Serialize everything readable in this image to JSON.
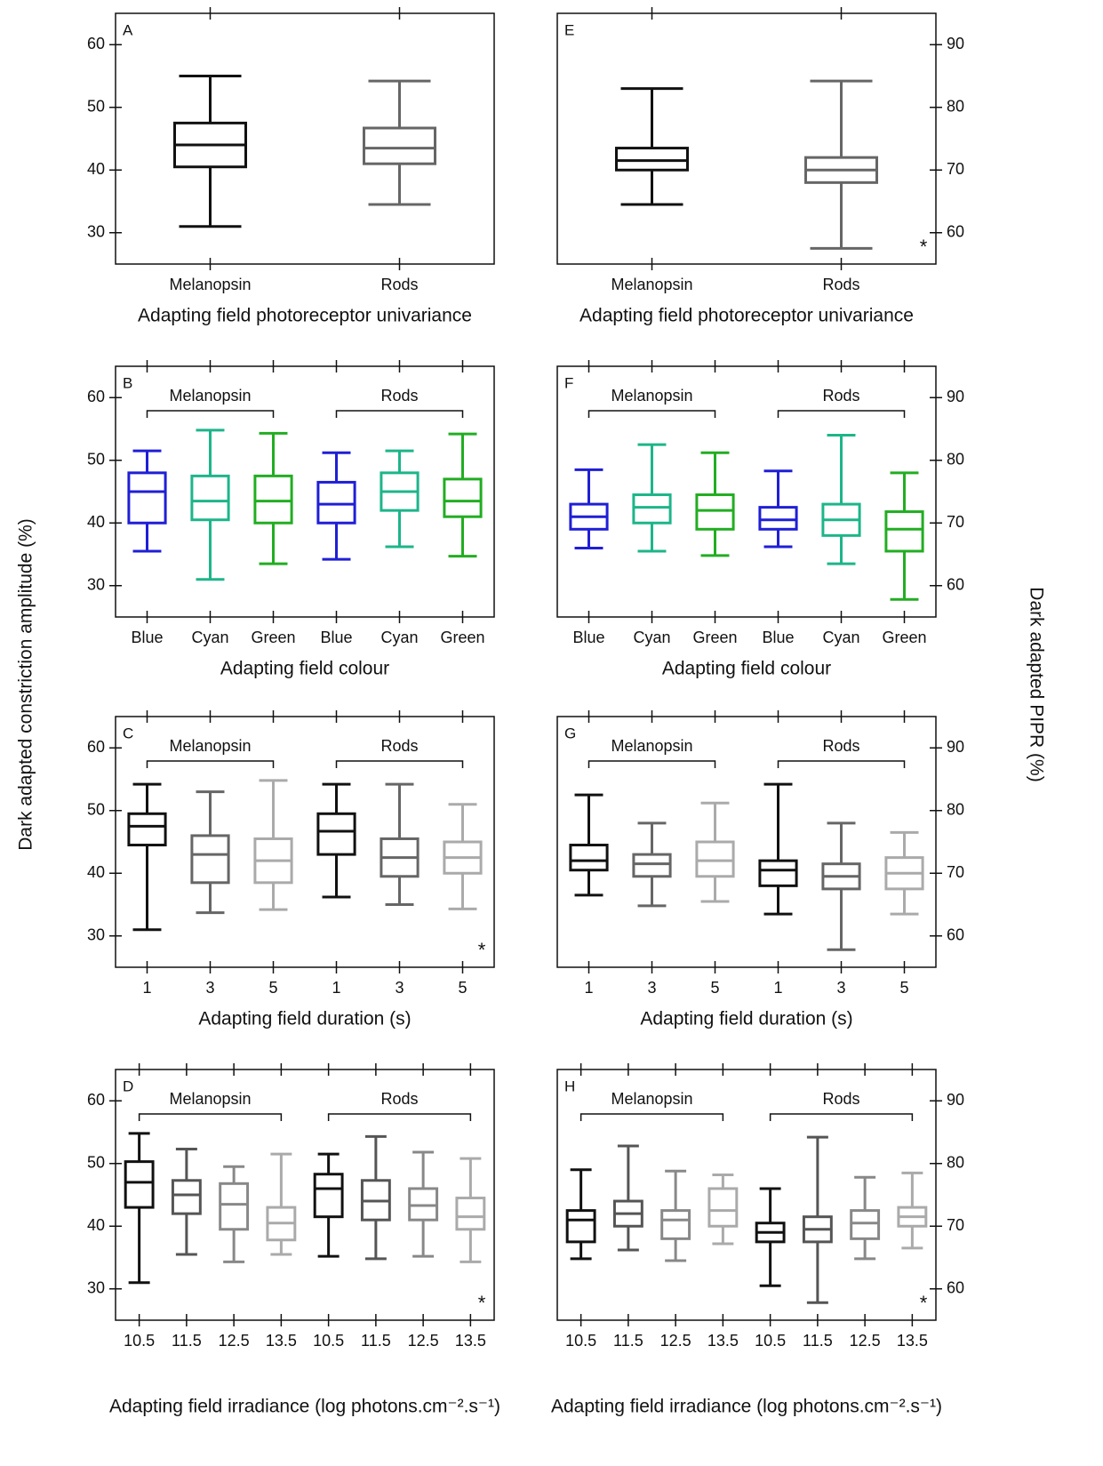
{
  "figure": {
    "ylabel_left": "Dark adapted constriction amplitude (%)",
    "ylabel_right": "Dark adapted PIPR (%)"
  },
  "chart_data": [
    {
      "type": "box",
      "label": "A",
      "xlabel": "Adapting field photoreceptor univariance",
      "categories": [
        "Melanopsin",
        "Rods"
      ],
      "colors": [
        "#111111",
        "#666666"
      ],
      "min": [
        31,
        34.5
      ],
      "q1": [
        40.5,
        41
      ],
      "median": [
        44,
        43.5
      ],
      "q3": [
        47.5,
        46.7
      ],
      "max": [
        55,
        54.2
      ],
      "ylim": [
        25,
        65
      ],
      "yticks": [
        30,
        40,
        50,
        60
      ],
      "yaxis_side": "left"
    },
    {
      "type": "box",
      "label": "B",
      "xlabel": "Adapting field colour",
      "categories": [
        "Blue",
        "Cyan",
        "Green",
        "Blue",
        "Cyan",
        "Green"
      ],
      "groups": [
        "Melanopsin",
        "Rods"
      ],
      "colors": [
        "#1f1fd6",
        "#1db58a",
        "#22ad22",
        "#1f1fd6",
        "#1db58a",
        "#22ad22"
      ],
      "min": [
        35.5,
        31,
        33.5,
        34.2,
        36.2,
        34.7
      ],
      "q1": [
        40,
        40.5,
        40,
        40,
        42,
        41
      ],
      "median": [
        45,
        43.5,
        43.5,
        43,
        45,
        43.5
      ],
      "q3": [
        48,
        47.5,
        47.5,
        46.5,
        48,
        47
      ],
      "max": [
        51.5,
        54.8,
        54.3,
        51.2,
        51.5,
        54.2
      ],
      "ylim": [
        25,
        65
      ],
      "yticks": [
        30,
        40,
        50,
        60
      ],
      "yaxis_side": "left"
    },
    {
      "type": "box",
      "label": "C",
      "xlabel": "Adapting field duration (s)",
      "categories": [
        "1",
        "3",
        "5",
        "1",
        "3",
        "5"
      ],
      "groups": [
        "Melanopsin",
        "Rods"
      ],
      "colors": [
        "#111111",
        "#666666",
        "#aaaaaa",
        "#111111",
        "#666666",
        "#aaaaaa"
      ],
      "min": [
        31,
        33.7,
        34.2,
        36.2,
        35,
        34.3
      ],
      "q1": [
        44.5,
        38.5,
        38.5,
        43,
        39.5,
        40
      ],
      "median": [
        47.5,
        43,
        42,
        46.7,
        42.5,
        42.5
      ],
      "q3": [
        49.5,
        46,
        45.5,
        49.5,
        45.5,
        45
      ],
      "max": [
        54.2,
        53,
        54.8,
        54.2,
        54.2,
        51
      ],
      "ylim": [
        25,
        65
      ],
      "yticks": [
        30,
        40,
        50,
        60
      ],
      "yaxis_side": "left",
      "annotation": "*"
    },
    {
      "type": "box",
      "label": "D",
      "xlabel": "Adapting field irradiance (log photons.cm⁻².s⁻¹)",
      "categories": [
        "10.5",
        "11.5",
        "12.5",
        "13.5",
        "10.5",
        "11.5",
        "12.5",
        "13.5"
      ],
      "groups": [
        "Melanopsin",
        "Rods"
      ],
      "colors": [
        "#111111",
        "#555555",
        "#888888",
        "#aaaaaa",
        "#111111",
        "#555555",
        "#888888",
        "#aaaaaa"
      ],
      "min": [
        31,
        35.5,
        34.3,
        35.5,
        35.2,
        34.8,
        35.2,
        34.3
      ],
      "q1": [
        43,
        42,
        39.5,
        37.8,
        41.5,
        41,
        41,
        39.5
      ],
      "median": [
        47,
        45,
        43.5,
        40.5,
        46,
        44,
        43.3,
        41.5
      ],
      "q3": [
        50.3,
        47.3,
        46.8,
        43,
        48.3,
        47.3,
        46,
        44.5
      ],
      "max": [
        54.8,
        52.3,
        49.5,
        51.5,
        51.5,
        54.3,
        51.8,
        50.8
      ],
      "ylim": [
        25,
        65
      ],
      "yticks": [
        30,
        40,
        50,
        60
      ],
      "yaxis_side": "left",
      "annotation": "*"
    },
    {
      "type": "box",
      "label": "E",
      "xlabel": "Adapting field photoreceptor univariance",
      "categories": [
        "Melanopsin",
        "Rods"
      ],
      "colors": [
        "#111111",
        "#666666"
      ],
      "min": [
        64.5,
        57.5
      ],
      "q1": [
        70,
        68
      ],
      "median": [
        71.5,
        70
      ],
      "q3": [
        73.5,
        72
      ],
      "max": [
        83,
        84.2
      ],
      "ylim": [
        55,
        95
      ],
      "yticks": [
        60,
        70,
        80,
        90
      ],
      "yaxis_side": "right",
      "annotation": "*"
    },
    {
      "type": "box",
      "label": "F",
      "xlabel": "Adapting field colour",
      "categories": [
        "Blue",
        "Cyan",
        "Green",
        "Blue",
        "Cyan",
        "Green"
      ],
      "groups": [
        "Melanopsin",
        "Rods"
      ],
      "colors": [
        "#1f1fd6",
        "#1db58a",
        "#22ad22",
        "#1f1fd6",
        "#1db58a",
        "#22ad22"
      ],
      "min": [
        66,
        65.5,
        64.8,
        66.2,
        63.5,
        57.8
      ],
      "q1": [
        69,
        70,
        69,
        69,
        68,
        65.5
      ],
      "median": [
        71,
        72.5,
        72,
        70.5,
        70.5,
        69
      ],
      "q3": [
        73,
        74.5,
        74.5,
        72.5,
        73,
        71.8
      ],
      "max": [
        78.5,
        82.5,
        81.2,
        78.3,
        84,
        78
      ],
      "ylim": [
        55,
        95
      ],
      "yticks": [
        60,
        70,
        80,
        90
      ],
      "yaxis_side": "right"
    },
    {
      "type": "box",
      "label": "G",
      "xlabel": "Adapting field duration (s)",
      "categories": [
        "1",
        "3",
        "5",
        "1",
        "3",
        "5"
      ],
      "groups": [
        "Melanopsin",
        "Rods"
      ],
      "colors": [
        "#111111",
        "#666666",
        "#aaaaaa",
        "#111111",
        "#666666",
        "#aaaaaa"
      ],
      "min": [
        66.5,
        64.8,
        65.5,
        63.5,
        57.8,
        63.5
      ],
      "q1": [
        70.5,
        69.5,
        69.5,
        68,
        67.5,
        67.5
      ],
      "median": [
        72,
        71.5,
        72,
        70.5,
        69.5,
        70
      ],
      "q3": [
        74.5,
        73,
        75,
        72,
        71.5,
        72.5
      ],
      "max": [
        82.5,
        78,
        81.2,
        84.2,
        78,
        76.5
      ],
      "ylim": [
        55,
        95
      ],
      "yticks": [
        60,
        70,
        80,
        90
      ],
      "yaxis_side": "right"
    },
    {
      "type": "box",
      "label": "H",
      "xlabel": "Adapting field irradiance (log photons.cm⁻².s⁻¹)",
      "categories": [
        "10.5",
        "11.5",
        "12.5",
        "13.5",
        "10.5",
        "11.5",
        "12.5",
        "13.5"
      ],
      "groups": [
        "Melanopsin",
        "Rods"
      ],
      "colors": [
        "#111111",
        "#555555",
        "#888888",
        "#aaaaaa",
        "#111111",
        "#555555",
        "#888888",
        "#aaaaaa"
      ],
      "min": [
        64.8,
        66.2,
        64.5,
        67.2,
        60.5,
        57.8,
        64.8,
        66.5
      ],
      "q1": [
        67.5,
        70,
        68,
        70,
        67.5,
        67.5,
        68,
        70
      ],
      "median": [
        71,
        72,
        71,
        72.5,
        69,
        69.5,
        70.5,
        71.5
      ],
      "q3": [
        72.5,
        74,
        72.5,
        76,
        70.5,
        71.5,
        72.5,
        73
      ],
      "max": [
        79,
        82.8,
        78.8,
        78.2,
        76,
        84.2,
        77.8,
        78.5
      ],
      "ylim": [
        55,
        95
      ],
      "yticks": [
        60,
        70,
        80,
        90
      ],
      "yaxis_side": "right",
      "annotation": "*"
    }
  ]
}
